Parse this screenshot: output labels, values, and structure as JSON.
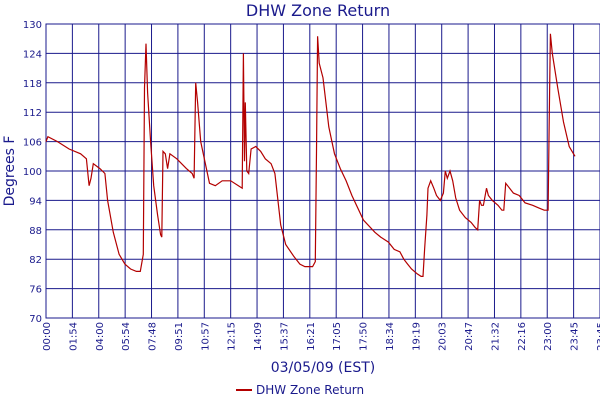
{
  "chart_data": {
    "type": "line",
    "title": "DHW Zone Return",
    "xlabel": "03/05/09 (EST)",
    "ylabel": "Degrees F",
    "ylim": [
      70,
      130
    ],
    "yticks": [
      70,
      76,
      82,
      88,
      94,
      100,
      106,
      112,
      118,
      124,
      130
    ],
    "xlim": [
      "00:00",
      "24:00"
    ],
    "xticks": [
      "00:00",
      "01:54",
      "04:00",
      "05:54",
      "07:48",
      "09:51",
      "10:57",
      "12:15",
      "14:09",
      "15:37",
      "16:21",
      "17:05",
      "17:50",
      "18:34",
      "19:19",
      "20:03",
      "20:47",
      "21:32",
      "22:16",
      "23:00",
      "23:45",
      "23:45"
    ],
    "grid": true,
    "legend": "bottom",
    "colors": {
      "line": "#b30000",
      "grid": "#1a1a8c",
      "text": "#1a1a8c"
    },
    "series": [
      {
        "name": "DHW Zone Return",
        "points": [
          [
            "00:00",
            106
          ],
          [
            "00:05",
            107
          ],
          [
            "00:30",
            106
          ],
          [
            "01:00",
            104.5
          ],
          [
            "01:30",
            103.5
          ],
          [
            "01:45",
            102.5
          ],
          [
            "01:52",
            97
          ],
          [
            "01:57",
            98.5
          ],
          [
            "02:03",
            101.5
          ],
          [
            "02:20",
            100.5
          ],
          [
            "02:33",
            99.5
          ],
          [
            "02:40",
            94
          ],
          [
            "02:55",
            87.5
          ],
          [
            "03:10",
            83
          ],
          [
            "03:25",
            81
          ],
          [
            "03:40",
            80
          ],
          [
            "03:55",
            79.5
          ],
          [
            "04:05",
            79.5
          ],
          [
            "04:13",
            83
          ],
          [
            "04:16",
            117
          ],
          [
            "04:20",
            126
          ],
          [
            "04:24",
            116
          ],
          [
            "04:32",
            106
          ],
          [
            "04:40",
            97
          ],
          [
            "04:50",
            91
          ],
          [
            "04:58",
            87
          ],
          [
            "05:01",
            86.5
          ],
          [
            "05:04",
            104
          ],
          [
            "05:10",
            103.5
          ],
          [
            "05:16",
            100.5
          ],
          [
            "05:22",
            103.5
          ],
          [
            "05:40",
            102.5
          ],
          [
            "06:05",
            100.5
          ],
          [
            "06:20",
            99.5
          ],
          [
            "06:25",
            98.5
          ],
          [
            "06:29",
            118
          ],
          [
            "06:34",
            114
          ],
          [
            "06:42",
            106
          ],
          [
            "07:05",
            97.5
          ],
          [
            "07:20",
            97
          ],
          [
            "07:38",
            98
          ],
          [
            "08:00",
            98
          ],
          [
            "08:20",
            97
          ],
          [
            "08:30",
            96.5
          ],
          [
            "08:33",
            124
          ],
          [
            "08:36",
            102
          ],
          [
            "08:38",
            114
          ],
          [
            "08:42",
            100
          ],
          [
            "08:47",
            99.5
          ],
          [
            "08:53",
            104.5
          ],
          [
            "09:05",
            105
          ],
          [
            "09:18",
            104
          ],
          [
            "09:30",
            102.5
          ],
          [
            "09:45",
            101.5
          ],
          [
            "09:55",
            99.5
          ],
          [
            "10:10",
            89
          ],
          [
            "10:23",
            85
          ],
          [
            "10:45",
            82.5
          ],
          [
            "11:00",
            81
          ],
          [
            "11:13",
            80.5
          ],
          [
            "11:33",
            80.5
          ],
          [
            "11:40",
            81.5
          ],
          [
            "11:43",
            104
          ],
          [
            "11:46",
            127.5
          ],
          [
            "11:50",
            122
          ],
          [
            "12:00",
            119
          ],
          [
            "12:15",
            109
          ],
          [
            "12:30",
            103.5
          ],
          [
            "12:45",
            100.5
          ],
          [
            "13:00",
            98
          ],
          [
            "13:15",
            95
          ],
          [
            "13:45",
            90
          ],
          [
            "14:15",
            87.5
          ],
          [
            "14:30",
            86.5
          ],
          [
            "14:50",
            85.5
          ],
          [
            "15:05",
            84
          ],
          [
            "15:20",
            83.5
          ],
          [
            "15:30",
            82
          ],
          [
            "15:40",
            81
          ],
          [
            "15:50",
            80
          ],
          [
            "16:05",
            79
          ],
          [
            "16:15",
            78.5
          ],
          [
            "16:20",
            78.5
          ],
          [
            "16:24",
            84
          ],
          [
            "16:30",
            91
          ],
          [
            "16:33",
            96.5
          ],
          [
            "16:40",
            98
          ],
          [
            "16:48",
            96.5
          ],
          [
            "16:55",
            95
          ],
          [
            "17:05",
            94
          ],
          [
            "17:13",
            95.5
          ],
          [
            "17:18",
            100
          ],
          [
            "17:23",
            98.5
          ],
          [
            "17:30",
            100
          ],
          [
            "17:37",
            98
          ],
          [
            "17:45",
            94.5
          ],
          [
            "17:55",
            92
          ],
          [
            "18:10",
            90.5
          ],
          [
            "18:25",
            89.5
          ],
          [
            "18:35",
            88.5
          ],
          [
            "18:42",
            88
          ],
          [
            "18:47",
            94
          ],
          [
            "18:52",
            93
          ],
          [
            "18:57",
            93
          ],
          [
            "19:05",
            96.5
          ],
          [
            "19:10",
            95
          ],
          [
            "19:20",
            94
          ],
          [
            "19:35",
            93
          ],
          [
            "19:45",
            92
          ],
          [
            "19:50",
            92
          ],
          [
            "19:55",
            97.5
          ],
          [
            "20:05",
            96.5
          ],
          [
            "20:15",
            95.5
          ],
          [
            "20:30",
            95
          ],
          [
            "20:45",
            93.5
          ],
          [
            "21:05",
            93
          ],
          [
            "21:20",
            92.5
          ],
          [
            "21:35",
            92
          ],
          [
            "21:45",
            92
          ],
          [
            "21:48",
            110
          ],
          [
            "21:51",
            128
          ],
          [
            "21:56",
            124
          ],
          [
            "22:10",
            117
          ],
          [
            "22:25",
            110
          ],
          [
            "22:40",
            105
          ],
          [
            "22:55",
            103
          ]
        ]
      }
    ]
  }
}
